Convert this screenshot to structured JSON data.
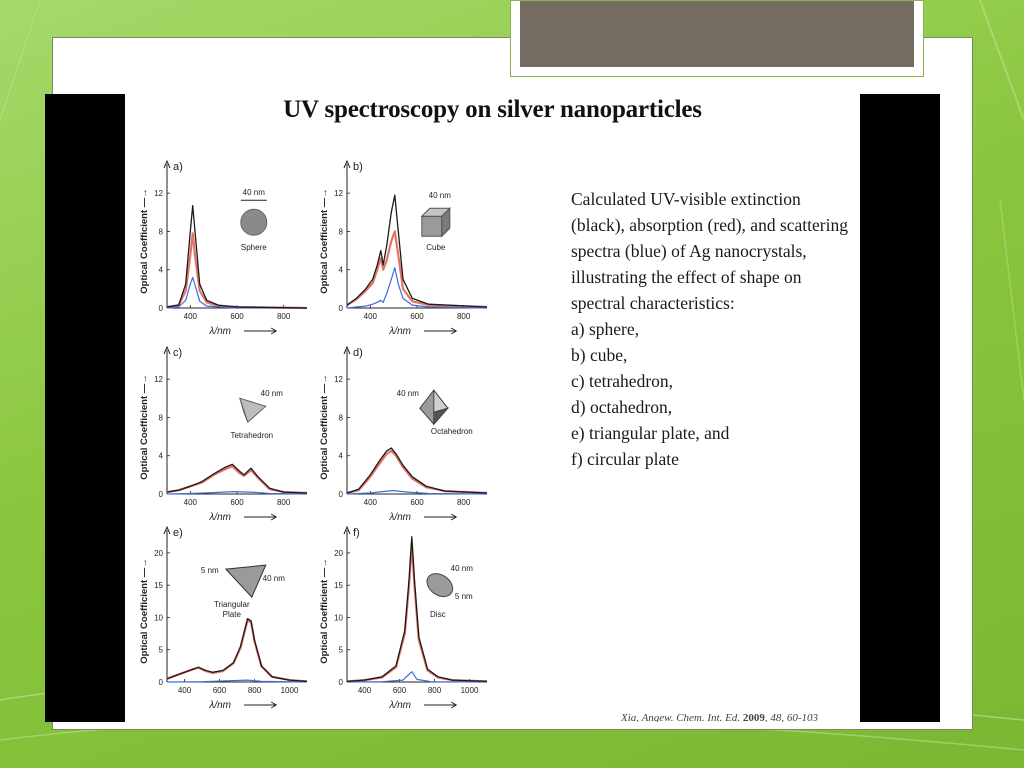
{
  "paper": {
    "title": "UV spectroscopy on silver nanoparticles",
    "caption_intro": "Calculated UV-visible extinction (black), absorption (red), and scattering spectra (blue) of Ag nanocrystals, illustrating the effect of shape on spectral characteristics:",
    "caption_items": [
      "a) sphere,",
      "b) cube,",
      "c) tetrahedron,",
      "d) octahedron,",
      "e) triangular plate, and",
      "f) circular plate"
    ],
    "citation": {
      "text": "Xia, Angew. Chem. Int. Ed.",
      "year": "2009",
      "pages": "48, 60-103"
    }
  },
  "figure": {
    "ylabel": "Optical Coefficient",
    "xlabel": "λ/nm",
    "colors": {
      "extinction": "#1a1a1a",
      "absorption": "#e05a4a",
      "scattering": "#3b6fd6"
    },
    "panels": [
      {
        "id": "a",
        "label": "a)",
        "shape": "Sphere",
        "shape_icon": "sphere-icon",
        "annotations": [
          "40 nm"
        ],
        "xlim": [
          300,
          900
        ],
        "ylim": [
          0,
          14
        ],
        "xticks": [
          400,
          600,
          800
        ],
        "yticks": [
          0,
          4,
          8,
          12
        ],
        "series": {
          "extinction": [
            [
              300,
              0.1
            ],
            [
              350,
              0.3
            ],
            [
              380,
              2.5
            ],
            [
              400,
              8
            ],
            [
              410,
              10.7
            ],
            [
              420,
              8
            ],
            [
              440,
              2.5
            ],
            [
              470,
              0.8
            ],
            [
              520,
              0.3
            ],
            [
              600,
              0.1
            ],
            [
              900,
              0
            ]
          ],
          "absorption": [
            [
              300,
              0.1
            ],
            [
              350,
              0.3
            ],
            [
              380,
              1.8
            ],
            [
              400,
              5.5
            ],
            [
              410,
              7.8
            ],
            [
              420,
              5.5
            ],
            [
              440,
              1.8
            ],
            [
              470,
              0.6
            ],
            [
              520,
              0.2
            ],
            [
              600,
              0.1
            ],
            [
              900,
              0
            ]
          ],
          "scattering": [
            [
              300,
              0
            ],
            [
              350,
              0.1
            ],
            [
              380,
              0.8
            ],
            [
              400,
              2.5
            ],
            [
              410,
              3.2
            ],
            [
              420,
              2.4
            ],
            [
              440,
              0.7
            ],
            [
              470,
              0.2
            ],
            [
              600,
              0
            ],
            [
              900,
              0
            ]
          ]
        }
      },
      {
        "id": "b",
        "label": "b)",
        "shape": "Cube",
        "shape_icon": "cube-icon",
        "annotations": [
          "40 nm"
        ],
        "xlim": [
          300,
          900
        ],
        "ylim": [
          0,
          14
        ],
        "xticks": [
          400,
          600,
          800
        ],
        "yticks": [
          0,
          4,
          8,
          12
        ],
        "series": {
          "extinction": [
            [
              300,
              0.3
            ],
            [
              340,
              1
            ],
            [
              380,
              2
            ],
            [
              410,
              3
            ],
            [
              430,
              4.5
            ],
            [
              445,
              6
            ],
            [
              455,
              4.5
            ],
            [
              470,
              6.5
            ],
            [
              490,
              10
            ],
            [
              505,
              11.8
            ],
            [
              520,
              8
            ],
            [
              540,
              3
            ],
            [
              580,
              1
            ],
            [
              650,
              0.4
            ],
            [
              900,
              0.1
            ]
          ],
          "absorption": [
            [
              300,
              0.3
            ],
            [
              340,
              0.9
            ],
            [
              380,
              1.8
            ],
            [
              410,
              2.6
            ],
            [
              430,
              4
            ],
            [
              445,
              5.2
            ],
            [
              455,
              4
            ],
            [
              470,
              5
            ],
            [
              490,
              7
            ],
            [
              505,
              8
            ],
            [
              520,
              5.5
            ],
            [
              540,
              2
            ],
            [
              580,
              0.7
            ],
            [
              650,
              0.3
            ],
            [
              900,
              0.1
            ]
          ],
          "scattering": [
            [
              300,
              0
            ],
            [
              340,
              0.1
            ],
            [
              380,
              0.2
            ],
            [
              410,
              0.4
            ],
            [
              430,
              0.6
            ],
            [
              445,
              0.8
            ],
            [
              455,
              0.6
            ],
            [
              470,
              1.5
            ],
            [
              490,
              3
            ],
            [
              505,
              4.2
            ],
            [
              520,
              2.5
            ],
            [
              540,
              1
            ],
            [
              580,
              0.3
            ],
            [
              650,
              0.1
            ],
            [
              900,
              0
            ]
          ]
        }
      },
      {
        "id": "c",
        "label": "c)",
        "shape": "Tetrahedron",
        "shape_icon": "tetrahedron-icon",
        "annotations": [
          "40 nm"
        ],
        "xlim": [
          300,
          900
        ],
        "ylim": [
          0,
          14
        ],
        "xticks": [
          400,
          600,
          800
        ],
        "yticks": [
          0,
          4,
          8,
          12
        ],
        "series": {
          "extinction": [
            [
              300,
              0.2
            ],
            [
              350,
              0.4
            ],
            [
              400,
              0.8
            ],
            [
              450,
              1.3
            ],
            [
              500,
              2.1
            ],
            [
              550,
              2.8
            ],
            [
              580,
              3.1
            ],
            [
              610,
              2.4
            ],
            [
              630,
              2
            ],
            [
              660,
              2.7
            ],
            [
              690,
              1.8
            ],
            [
              740,
              0.6
            ],
            [
              800,
              0.2
            ],
            [
              900,
              0.1
            ]
          ],
          "absorption": [
            [
              300,
              0.2
            ],
            [
              350,
              0.4
            ],
            [
              400,
              0.8
            ],
            [
              450,
              1.2
            ],
            [
              500,
              2
            ],
            [
              550,
              2.6
            ],
            [
              580,
              2.9
            ],
            [
              610,
              2.2
            ],
            [
              630,
              1.9
            ],
            [
              660,
              2.5
            ],
            [
              690,
              1.7
            ],
            [
              740,
              0.5
            ],
            [
              800,
              0.2
            ],
            [
              900,
              0.1
            ]
          ],
          "scattering": [
            [
              300,
              0
            ],
            [
              400,
              0.05
            ],
            [
              500,
              0.15
            ],
            [
              580,
              0.25
            ],
            [
              660,
              0.2
            ],
            [
              740,
              0.05
            ],
            [
              900,
              0
            ]
          ]
        }
      },
      {
        "id": "d",
        "label": "d)",
        "shape": "Octahedron",
        "shape_icon": "octahedron-icon",
        "annotations": [
          "40 nm"
        ],
        "xlim": [
          300,
          900
        ],
        "ylim": [
          0,
          14
        ],
        "xticks": [
          400,
          600,
          800
        ],
        "yticks": [
          0,
          4,
          8,
          12
        ],
        "series": {
          "extinction": [
            [
              300,
              0.1
            ],
            [
              350,
              0.5
            ],
            [
              400,
              2
            ],
            [
              440,
              3.5
            ],
            [
              470,
              4.5
            ],
            [
              490,
              4.8
            ],
            [
              510,
              4.2
            ],
            [
              540,
              3
            ],
            [
              580,
              1.8
            ],
            [
              640,
              0.8
            ],
            [
              720,
              0.3
            ],
            [
              900,
              0.1
            ]
          ],
          "absorption": [
            [
              300,
              0.1
            ],
            [
              350,
              0.4
            ],
            [
              400,
              1.8
            ],
            [
              440,
              3.2
            ],
            [
              470,
              4.2
            ],
            [
              490,
              4.5
            ],
            [
              510,
              4
            ],
            [
              540,
              2.8
            ],
            [
              580,
              1.6
            ],
            [
              640,
              0.7
            ],
            [
              720,
              0.3
            ],
            [
              900,
              0.1
            ]
          ],
          "scattering": [
            [
              300,
              0
            ],
            [
              400,
              0.1
            ],
            [
              470,
              0.3
            ],
            [
              500,
              0.35
            ],
            [
              560,
              0.2
            ],
            [
              650,
              0.05
            ],
            [
              900,
              0
            ]
          ]
        }
      },
      {
        "id": "e",
        "label": "e)",
        "shape": "Triangular Plate",
        "shape_icon": "triangular-plate-icon",
        "annotations": [
          "5 nm",
          "40 nm"
        ],
        "xlim": [
          300,
          1100
        ],
        "ylim": [
          0,
          22
        ],
        "xticks": [
          400,
          600,
          800,
          1000
        ],
        "yticks": [
          0,
          5,
          10,
          15,
          20
        ],
        "series": {
          "extinction": [
            [
              300,
              0.5
            ],
            [
              350,
              1
            ],
            [
              400,
              1.5
            ],
            [
              450,
              2
            ],
            [
              480,
              2.3
            ],
            [
              520,
              1.8
            ],
            [
              560,
              1.5
            ],
            [
              620,
              1.8
            ],
            [
              680,
              3
            ],
            [
              720,
              5.5
            ],
            [
              760,
              9.8
            ],
            [
              780,
              9.5
            ],
            [
              800,
              6.5
            ],
            [
              840,
              2.5
            ],
            [
              900,
              0.8
            ],
            [
              1000,
              0.3
            ],
            [
              1100,
              0.1
            ]
          ],
          "absorption": [
            [
              300,
              0.5
            ],
            [
              350,
              1
            ],
            [
              400,
              1.5
            ],
            [
              450,
              2
            ],
            [
              480,
              2.2
            ],
            [
              520,
              1.7
            ],
            [
              560,
              1.4
            ],
            [
              620,
              1.7
            ],
            [
              680,
              2.9
            ],
            [
              720,
              5.3
            ],
            [
              760,
              9.5
            ],
            [
              780,
              9.3
            ],
            [
              800,
              6.3
            ],
            [
              840,
              2.4
            ],
            [
              900,
              0.8
            ],
            [
              1000,
              0.3
            ],
            [
              1100,
              0.1
            ]
          ],
          "scattering": [
            [
              300,
              0
            ],
            [
              500,
              0.05
            ],
            [
              760,
              0.3
            ],
            [
              840,
              0.1
            ],
            [
              1100,
              0
            ]
          ]
        }
      },
      {
        "id": "f",
        "label": "f)",
        "shape": "Disc",
        "shape_icon": "disc-icon",
        "annotations": [
          "40 nm",
          "5 nm"
        ],
        "xlim": [
          300,
          1100
        ],
        "ylim": [
          0,
          22
        ],
        "xticks": [
          400,
          600,
          800,
          1000
        ],
        "yticks": [
          0,
          5,
          10,
          15,
          20
        ],
        "series": {
          "extinction": [
            [
              300,
              0.1
            ],
            [
              400,
              0.3
            ],
            [
              500,
              0.8
            ],
            [
              580,
              2.5
            ],
            [
              630,
              8
            ],
            [
              655,
              16
            ],
            [
              670,
              22.5
            ],
            [
              685,
              16
            ],
            [
              710,
              7
            ],
            [
              760,
              2
            ],
            [
              820,
              0.8
            ],
            [
              900,
              0.3
            ],
            [
              1100,
              0.1
            ]
          ],
          "absorption": [
            [
              300,
              0.1
            ],
            [
              400,
              0.3
            ],
            [
              500,
              0.7
            ],
            [
              580,
              2.3
            ],
            [
              630,
              7.5
            ],
            [
              655,
              15
            ],
            [
              670,
              21.5
            ],
            [
              685,
              15
            ],
            [
              710,
              6.5
            ],
            [
              760,
              1.8
            ],
            [
              820,
              0.7
            ],
            [
              900,
              0.3
            ],
            [
              1100,
              0.1
            ]
          ],
          "scattering": [
            [
              300,
              0
            ],
            [
              500,
              0.05
            ],
            [
              620,
              0.3
            ],
            [
              670,
              1.6
            ],
            [
              700,
              0.4
            ],
            [
              780,
              0.05
            ],
            [
              1100,
              0
            ]
          ]
        }
      }
    ]
  }
}
